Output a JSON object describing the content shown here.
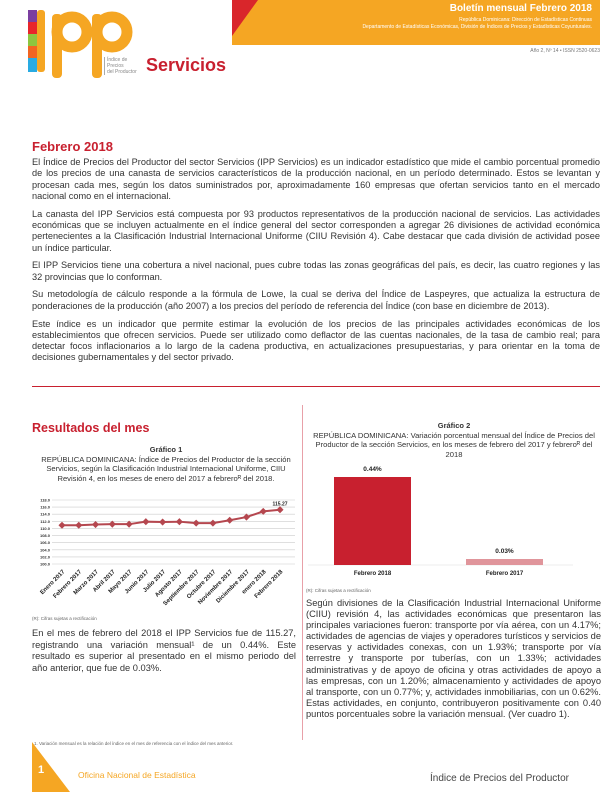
{
  "header": {
    "bulletin": "Boletín mensual Febrero 2018",
    "org_line1": "República Dominicana: Dirección de Estadísticas Continuas",
    "org_line2": "Departamento de Estadísticas Económicas, División de Índices de Precios y Estadísticas Coyunturales.",
    "issn": "Año 2, Nº 14 • ISSN 2520-0623",
    "logo_text": "IPP",
    "logo_sub": [
      "Índice de",
      "Precios",
      "del Productor"
    ],
    "section": "Servicios"
  },
  "intro": {
    "title": "Febrero 2018",
    "paragraphs": [
      "El Índice de Precios del Productor del sector Servicios (IPP Servicios) es un indicador estadístico que mide el cambio porcentual promedio de los precios de una canasta de servicios característicos de la producción nacional, en un período determinado. Estos se levantan y procesan cada mes, según los datos suministrados por, aproximadamente 160 empresas que ofertan servicios tanto en el mercado nacional como en el internacional.",
      "La canasta del IPP Servicios está compuesta por 93 productos representativos de la producción nacional de servicios. Las actividades económicas que se incluyen actualmente en el índice general del sector corresponden a agregar 26 divisiones de actividad económica pertenecientes a la Clasificación Industrial Internacional Uniforme (CIIU Revisión 4). Cabe destacar que cada división de actividad posee un índice particular.",
      "El IPP Servicios tiene una cobertura a nivel nacional, pues cubre todas las zonas geográficas del país, es decir, las cuatro regiones y las 32 provincias que lo conforman.",
      "Su metodología de cálculo responde a la fórmula de Lowe, la cual se deriva del Índice de Laspeyres, que actualiza la estructura de ponderaciones de la producción (año 2007) a los precios del período de referencia del Índice (con base en diciembre de 2013).",
      "Este índice es un indicador que permite estimar la evolución de los precios de las principales actividades económicas de los establecimientos que ofrecen servicios. Puede ser utilizado como deflactor de las cuentas nacionales, de la tasa de cambio real; para detectar focos inflacionarios a lo largo de la cadena productiva, en actualizaciones presupuestarias, y para orientar en la toma de decisiones gubernamentales y del sector privado."
    ]
  },
  "results": {
    "title": "Resultados del mes",
    "left_text": "En el mes de febrero del 2018 el IPP Servicios fue de 115.27, registrando una variación mensual¹ de un 0.44%. Este resultado es superior al presentado en el mismo periodo del año anterior, que fue de 0.03%.",
    "right_text": "Según divisiones de la Clasificación Industrial Internacional Uniforme (CIIU) revisión 4, las actividades económicas que presentaron las principales variaciones fueron: transporte por vía aérea, con un 4.17%; actividades de agencias de viajes y operadores turísticos y servicios de reservas y actividades conexas, con un 1.93%; transporte por vía terrestre y transporte por tuberías, con un 1.33%; actividades administrativas y de apoyo de oficina y otras actividades de apoyo a las empresas, con un 1.20%; almacenamiento y actividades de apoyo al transporte, con un 0.77%; y, actividades inmobiliarias, con un 0.62%. Estas actividades, en conjunto, contribuyeron positivamente con 0.40 puntos porcentuales sobre la variación mensual. (Ver cuadro 1).",
    "note": "(R): Cifras sujetas a rectificación",
    "footnote": "1. Variación mensual es la relación del índice en el mes de referencia con el índice del mes anterior."
  },
  "chart_data": [
    {
      "type": "line",
      "label": "Gráfico 1",
      "title": "REPÚBLICA DOMINICANA: Índice de Precios del Productor de la sección Servicios, según la Clasificación Industrial Internacional Uniforme, CIIU Revisión 4, en los meses de enero del 2017 a febreroᴿ del 2018.",
      "categories": [
        "Enero 2017",
        "Febrero 2017",
        "Marzo 2017",
        "Abril 2017",
        "Mayo 2017",
        "Junio 2017",
        "Julio 2017",
        "Agosto 2017",
        "Septiembre 2017",
        "Octubre 2017",
        "Noviembre 2017",
        "Diciembre 2017",
        "enero 2018",
        "Febrero 2018"
      ],
      "values": [
        110.9,
        110.9,
        111.1,
        111.2,
        111.2,
        111.9,
        111.8,
        111.9,
        111.5,
        111.5,
        112.3,
        113.2,
        114.8,
        115.27
      ],
      "data_labels": {
        "13": "115.27"
      },
      "ylim": [
        100,
        118
      ],
      "yticks": [
        "118.0",
        "116.0",
        "114.0",
        "112.0",
        "110.0",
        "108.0",
        "106.0",
        "104.0",
        "102.0",
        "100.0"
      ],
      "grid": true,
      "color": "#b5474f"
    },
    {
      "type": "bar",
      "label": "Gráfico 2",
      "title": "REPÚBLICA DOMINICANA: Variación porcentual mensual del Índice de Precios del Productor de la sección Servicios, en los meses de febrero del 2017 y febreroᴿ del 2018",
      "categories": [
        "Febrero 2018",
        "Febrero 2017"
      ],
      "values": [
        0.44,
        0.03
      ],
      "data_labels": [
        "0.44%",
        "0.03%"
      ],
      "colors": [
        "#c8202f",
        "#e0959b"
      ]
    }
  ],
  "footer": {
    "page": "1",
    "org": "Oficina Nacional de Estadística",
    "publication": "Índice de Precios del Productor"
  }
}
